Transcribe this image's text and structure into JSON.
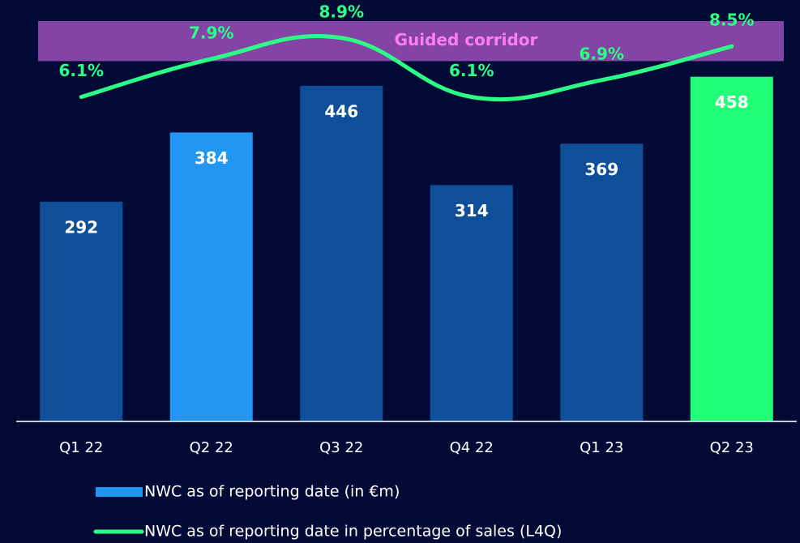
{
  "chart_data": {
    "type": "bar",
    "categories": [
      "Q1 22",
      "Q2 22",
      "Q3 22",
      "Q4 22",
      "Q1 23",
      "Q2 23"
    ],
    "ylim": [
      0,
      560
    ],
    "y2lim": [
      -9.3,
      10.7
    ],
    "series": [
      {
        "name": "NWC as of reporting date (in €m)",
        "type": "bar",
        "color": "#2196f3",
        "colors": [
          "#0f4f99",
          "#2196f3",
          "#0f4f99",
          "#0f4f99",
          "#0f4f99",
          "#22ff77"
        ],
        "values": [
          292,
          384,
          446,
          314,
          369,
          458
        ]
      },
      {
        "name": "NWC as of reporting date in percentage of sales (L4Q)",
        "type": "line",
        "axis": "y2",
        "color": "#2bff86",
        "values": [
          6.1,
          7.9,
          8.9,
          6.1,
          6.9,
          8.5
        ],
        "value_labels": [
          "6.1%",
          "7.9%",
          "8.9%",
          "6.1%",
          "6.9%",
          "8.5%"
        ]
      }
    ],
    "corridor": {
      "label": "Guided corridor",
      "range": [
        7.8,
        9.7
      ],
      "color": "#9b4fb8"
    },
    "legend": "bottom-left"
  }
}
